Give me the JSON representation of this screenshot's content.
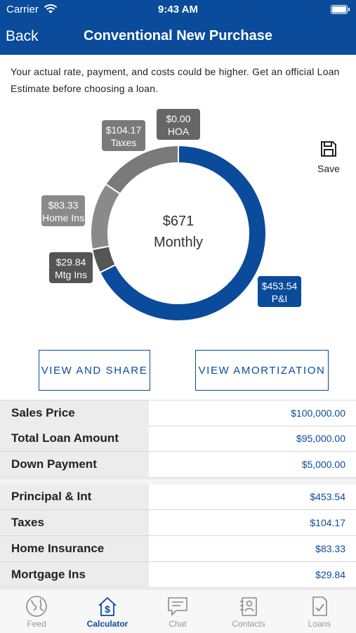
{
  "status": {
    "carrier": "Carrier",
    "time": "9:43 AM"
  },
  "nav": {
    "back": "Back",
    "title": "Conventional New Purchase"
  },
  "disclaimer": "Your actual rate, payment, and costs could be higher. Get an official Loan Estimate before choosing a loan.",
  "chart_data": {
    "type": "pie",
    "donut": true,
    "center": {
      "amount": "$671",
      "period": "Monthly"
    },
    "slices": [
      {
        "label": "P&I",
        "value": 453.54,
        "display": "$453.54",
        "color": "#0a4b9b"
      },
      {
        "label": "Mtg Ins",
        "value": 29.84,
        "display": "$29.84",
        "color": "#555555"
      },
      {
        "label": "Home Ins",
        "value": 83.33,
        "display": "$83.33",
        "color": "#8a8a8a"
      },
      {
        "label": "Taxes",
        "value": 104.17,
        "display": "$104.17",
        "color": "#7a7a7a"
      },
      {
        "label": "HOA",
        "value": 0.0,
        "display": "$0.00",
        "color": "#666666"
      }
    ]
  },
  "save_label": "Save",
  "buttons": {
    "share": "VIEW AND SHARE",
    "amortization": "VIEW AMORTIZATION"
  },
  "summary": [
    {
      "label": "Sales Price",
      "value": "$100,000.00"
    },
    {
      "label": "Total Loan Amount",
      "value": "$95,000.00"
    },
    {
      "label": "Down Payment",
      "value": "$5,000.00"
    }
  ],
  "breakdown": [
    {
      "label": "Principal & Int",
      "value": "$453.54"
    },
    {
      "label": "Taxes",
      "value": "$104.17"
    },
    {
      "label": "Home Insurance",
      "value": "$83.33"
    },
    {
      "label": "Mortgage Ins",
      "value": "$29.84"
    }
  ],
  "tabs": [
    {
      "label": "Feed",
      "icon": "globe-icon",
      "active": false
    },
    {
      "label": "Calculator",
      "icon": "house-dollar-icon",
      "active": true
    },
    {
      "label": "Chat",
      "icon": "chat-icon",
      "active": false
    },
    {
      "label": "Contacts",
      "icon": "contacts-icon",
      "active": false
    },
    {
      "label": "Loans",
      "icon": "document-check-icon",
      "active": false
    }
  ]
}
